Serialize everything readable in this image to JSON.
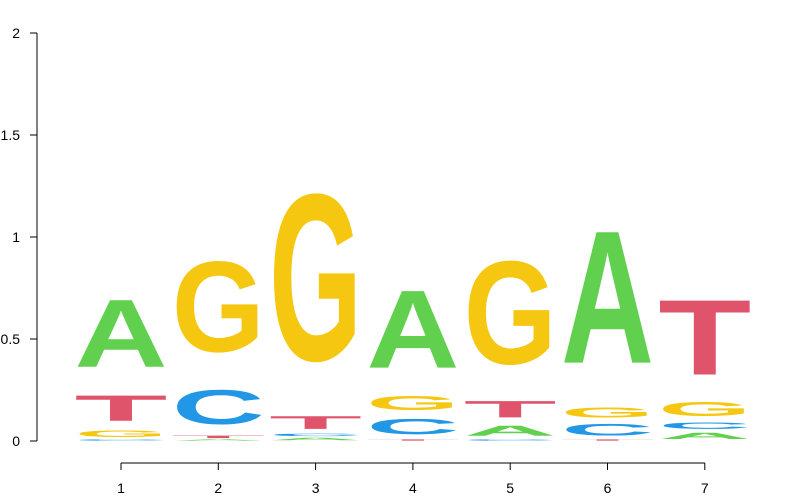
{
  "chart_data": {
    "type": "sequence-logo",
    "title": "",
    "xlabel": "",
    "ylabel": "",
    "ylim": [
      0,
      2
    ],
    "y_ticks": [
      "0",
      "0.5",
      "1",
      "1.5",
      "2"
    ],
    "positions": [
      "1",
      "2",
      "3",
      "4",
      "5",
      "6",
      "7"
    ],
    "letter_colors": {
      "A": "#61D04F",
      "C": "#2297E6",
      "G": "#F5C710",
      "T": "#DF536B"
    },
    "stacks": [
      [
        {
          "letter": "C",
          "height": 0.01
        },
        {
          "letter": "G",
          "height": 0.05
        },
        {
          "letter": "T",
          "height": 0.2
        },
        {
          "letter": "A",
          "height": 0.53
        }
      ],
      [
        {
          "letter": "A",
          "height": 0.01
        },
        {
          "letter": "T",
          "height": 0.02
        },
        {
          "letter": "C",
          "height": 0.27
        },
        {
          "letter": "G",
          "height": 0.71
        }
      ],
      [
        {
          "letter": "A",
          "height": 0.02
        },
        {
          "letter": "C",
          "height": 0.02
        },
        {
          "letter": "T",
          "height": 0.1
        },
        {
          "letter": "G",
          "height": 1.31
        }
      ],
      [
        {
          "letter": "T",
          "height": 0.01
        },
        {
          "letter": "C",
          "height": 0.12
        },
        {
          "letter": "G",
          "height": 0.11
        },
        {
          "letter": "A",
          "height": 0.61
        }
      ],
      [
        {
          "letter": "C",
          "height": 0.01
        },
        {
          "letter": "A",
          "height": 0.08
        },
        {
          "letter": "T",
          "height": 0.13
        },
        {
          "letter": "G",
          "height": 0.81
        }
      ],
      [
        {
          "letter": "T",
          "height": 0.01
        },
        {
          "letter": "C",
          "height": 0.09
        },
        {
          "letter": "G",
          "height": 0.08
        },
        {
          "letter": "A",
          "height": 1.04
        }
      ],
      [
        {
          "letter": "A",
          "height": 0.05
        },
        {
          "letter": "C",
          "height": 0.05
        },
        {
          "letter": "G",
          "height": 0.11
        },
        {
          "letter": "T",
          "height": 0.59
        }
      ]
    ]
  }
}
